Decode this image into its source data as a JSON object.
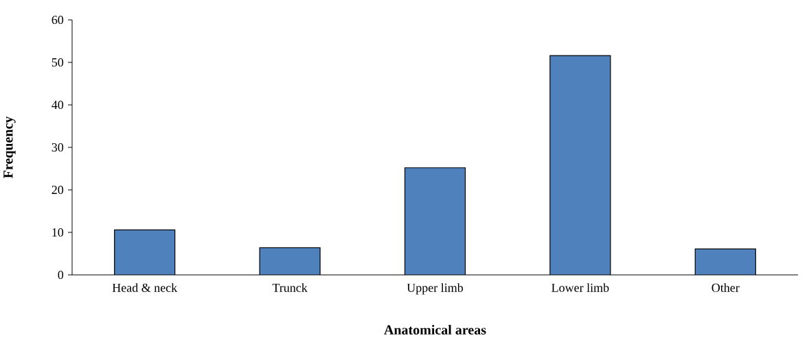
{
  "chart_data": {
    "type": "bar",
    "xlabel": "Anatomical areas",
    "ylabel": "Frequency",
    "categories": [
      "Head & neck",
      "Trunck",
      "Upper limb",
      "Lower limb",
      "Other"
    ],
    "values": [
      10.6,
      6.4,
      25.2,
      51.6,
      6.1
    ],
    "color": "#4f81bd",
    "ylim": [
      0,
      60
    ],
    "yticks": [
      0,
      10,
      20,
      30,
      40,
      50,
      60
    ],
    "grid": false
  }
}
